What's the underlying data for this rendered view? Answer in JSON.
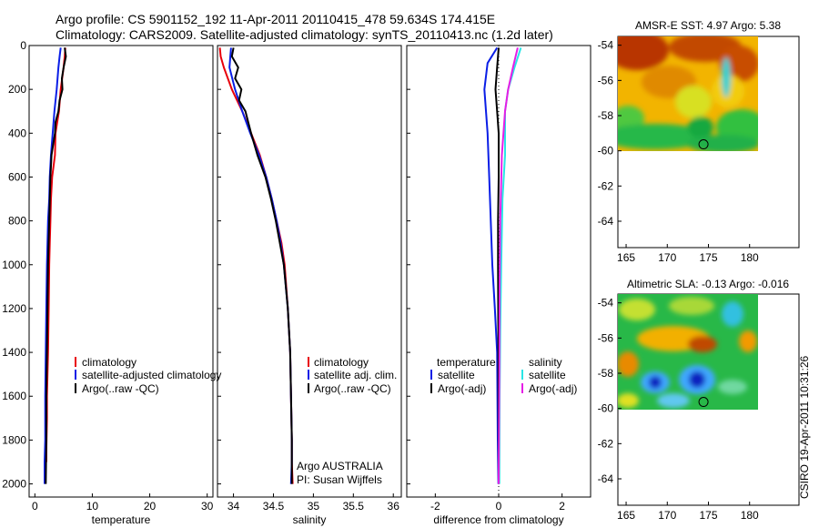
{
  "header": {
    "line1": "Argo profile: CS 5901152_192 11-Apr-2011 20110415_478 59.634S 174.415E",
    "line2": "Climatology: CARS2009. Satellite-adjusted climatology: synTS_20110413.nc (1.2d later)"
  },
  "credit": "CSIRO 19-Apr-2011 10:31:26",
  "colors": {
    "red": "#e8000b",
    "blue": "#0a1ee6",
    "black": "#000000",
    "cyan": "#29e6e6",
    "magenta": "#e61ee6"
  },
  "chart_data": [
    {
      "type": "line",
      "name": "temperature-profile",
      "xlabel": "temperature",
      "xlim": [
        -1,
        31
      ],
      "xticks": [
        "0",
        "10",
        "20",
        "30"
      ],
      "xtick_values": [
        0,
        10,
        20,
        30
      ],
      "ylim": [
        2060,
        0
      ],
      "yticks": [
        "0",
        "200",
        "400",
        "600",
        "800",
        "1000",
        "1200",
        "1400",
        "1600",
        "1800",
        "2000"
      ],
      "ytick_values": [
        0,
        200,
        400,
        600,
        800,
        1000,
        1200,
        1400,
        1600,
        1800,
        2000
      ],
      "series": [
        {
          "name": "climatology",
          "color": "red",
          "x": [
            5.3,
            5.2,
            5.0,
            4.5,
            4.2,
            3.6,
            3.5,
            3.0,
            2.8,
            2.7,
            2.6,
            2.5,
            2.4,
            2.3,
            2.2,
            2.1,
            2.1,
            2.0,
            2.0
          ],
          "y": [
            10,
            50,
            100,
            200,
            300,
            400,
            500,
            600,
            700,
            800,
            900,
            1000,
            1200,
            1400,
            1500,
            1600,
            1700,
            1850,
            1900
          ]
        },
        {
          "name": "satellite-adjusted climatology",
          "color": "blue",
          "x": [
            4.5,
            4.3,
            4.1,
            3.8,
            3.4,
            3.1,
            2.8,
            2.6,
            2.5,
            2.3,
            2.2,
            2.1,
            2.0,
            1.9,
            1.8,
            1.8,
            1.7,
            1.7
          ],
          "y": [
            10,
            50,
            100,
            200,
            300,
            400,
            500,
            600,
            700,
            800,
            900,
            1000,
            1200,
            1400,
            1600,
            1800,
            1900,
            2000
          ]
        },
        {
          "name": "Argo(..raw -QC)",
          "color": "black",
          "x": [
            5.2,
            5.4,
            5.0,
            4.7,
            4.8,
            4.3,
            4.1,
            3.6,
            3.5,
            3.2,
            2.9,
            2.7,
            2.5,
            2.3,
            2.2,
            2.1,
            2.0,
            2.0,
            1.9
          ],
          "y": [
            10,
            50,
            100,
            150,
            200,
            250,
            300,
            350,
            400,
            450,
            500,
            600,
            800,
            1000,
            1200,
            1400,
            1600,
            1800,
            2000
          ]
        }
      ],
      "legend": [
        "climatology",
        "satellite-adjusted climatology",
        "Argo(..raw -QC)"
      ]
    },
    {
      "type": "line",
      "name": "salinity-profile",
      "xlabel": "salinity",
      "xlim": [
        33.8,
        36.1
      ],
      "xticks": [
        "34",
        "34.5",
        "35",
        "35.5",
        "36"
      ],
      "xtick_values": [
        34,
        34.5,
        35,
        35.5,
        36
      ],
      "ylim": [
        2060,
        0
      ],
      "series": [
        {
          "name": "climatology",
          "color": "red",
          "x": [
            33.83,
            33.84,
            33.88,
            33.98,
            34.11,
            34.22,
            34.33,
            34.41,
            34.48,
            34.54,
            34.6,
            34.64,
            34.68,
            34.71,
            34.72,
            34.73,
            34.73,
            34.74
          ],
          "y": [
            10,
            50,
            100,
            200,
            300,
            400,
            500,
            600,
            700,
            800,
            900,
            1000,
            1200,
            1400,
            1600,
            1800,
            1900,
            2000
          ]
        },
        {
          "name": "satellite adj. clim.",
          "color": "blue",
          "x": [
            33.97,
            33.96,
            33.95,
            34.02,
            34.11,
            34.21,
            34.32,
            34.41,
            34.48,
            34.54,
            34.59,
            34.63,
            34.68,
            34.71,
            34.72,
            34.73,
            34.73,
            34.72
          ],
          "y": [
            10,
            50,
            100,
            200,
            300,
            400,
            500,
            600,
            700,
            800,
            900,
            1000,
            1200,
            1400,
            1600,
            1800,
            1900,
            2000
          ]
        },
        {
          "name": "Argo(..raw -QC)",
          "color": "black",
          "x": [
            34.0,
            33.98,
            34.06,
            34.02,
            34.1,
            34.07,
            34.15,
            34.22,
            34.3,
            34.4,
            34.47,
            34.53,
            34.58,
            34.63,
            34.68,
            34.71,
            34.72,
            34.73,
            34.73
          ],
          "y": [
            10,
            50,
            100,
            150,
            200,
            250,
            300,
            400,
            500,
            600,
            700,
            800,
            900,
            1000,
            1200,
            1400,
            1600,
            1800,
            2000
          ]
        }
      ],
      "legend": [
        "climatology",
        "satellite adj. clim.",
        "Argo(..raw -QC)"
      ],
      "annotation": [
        "Argo AUSTRALIA",
        "PI: Susan Wijffels"
      ]
    },
    {
      "type": "line",
      "name": "difference-profile",
      "xlabel": "difference from climatology",
      "xlim": [
        -2.9,
        2.9
      ],
      "xticks": [
        "-2",
        "0",
        "2"
      ],
      "xtick_values": [
        -2,
        0,
        2
      ],
      "ylim": [
        2060,
        0
      ],
      "series": [
        {
          "name": "temperature satellite",
          "color": "blue",
          "x": [
            -0.05,
            -0.35,
            -0.45,
            -0.35,
            -0.3,
            -0.25,
            -0.2,
            -0.12,
            -0.05,
            -0.03,
            -0.01
          ],
          "y": [
            10,
            80,
            200,
            400,
            600,
            800,
            1000,
            1200,
            1400,
            1800,
            2000
          ]
        },
        {
          "name": "temperature Argo(-adj)",
          "color": "black",
          "x": [
            0.0,
            -0.05,
            -0.1,
            -0.05,
            0.0,
            0.0,
            -0.02,
            -0.02,
            -0.01,
            0.0
          ],
          "y": [
            10,
            100,
            200,
            300,
            400,
            600,
            800,
            1000,
            1400,
            2000
          ]
        },
        {
          "name": "salinity satellite",
          "color": "cyan",
          "x": [
            0.7,
            0.5,
            0.3,
            0.2,
            0.2,
            0.12,
            0.08,
            0.05,
            0.03,
            0.02
          ],
          "y": [
            10,
            100,
            200,
            300,
            500,
            700,
            1000,
            1300,
            1600,
            2000
          ]
        },
        {
          "name": "salinity Argo(-adj)",
          "color": "magenta",
          "x": [
            0.6,
            0.45,
            0.3,
            0.2,
            0.1,
            0.05,
            0.03,
            0.02,
            0.0
          ],
          "y": [
            10,
            100,
            200,
            300,
            500,
            800,
            1100,
            1500,
            2000
          ]
        }
      ],
      "legend": {
        "temperature_title": "temperature",
        "salinity_title": "salinity",
        "temperature_items": [
          "satellite",
          "Argo(-adj)"
        ],
        "salinity_items": [
          "satellite",
          "Argo(-adj)"
        ]
      }
    },
    {
      "type": "heatmap",
      "name": "amsr-e-sst-map",
      "title": "AMSR-E SST: 4.97 Argo: 5.38",
      "xlim": [
        164,
        186
      ],
      "ylim": [
        -65.5,
        -53.5
      ],
      "xticks": [
        "165",
        "170",
        "175",
        "180"
      ],
      "xtick_values": [
        165,
        170,
        175,
        180
      ],
      "yticks": [
        "-54",
        "-56",
        "-58",
        "-60",
        "-62",
        "-64"
      ],
      "ytick_values": [
        -54,
        -56,
        -58,
        -60,
        -62,
        -64
      ],
      "data_extent": {
        "lon": [
          164.0,
          180.0
        ],
        "lat": [
          -53.7,
          -60.2
        ]
      },
      "marker": {
        "lon": 174.4,
        "lat": -59.63
      }
    },
    {
      "type": "heatmap",
      "name": "altimetric-sla-map",
      "title": "Altimetric SLA: -0.13 Argo: -0.016",
      "xlim": [
        164,
        186
      ],
      "ylim": [
        -65.5,
        -53.5
      ],
      "xticks": [
        "165",
        "170",
        "175",
        "180"
      ],
      "xtick_values": [
        165,
        170,
        175,
        180
      ],
      "yticks": [
        "-54",
        "-56",
        "-58",
        "-60",
        "-62",
        "-64"
      ],
      "ytick_values": [
        -54,
        -56,
        -58,
        -60,
        -62,
        -64
      ],
      "data_extent": {
        "lon": [
          164.0,
          180.0
        ],
        "lat": [
          -53.7,
          -60.2
        ]
      },
      "marker": {
        "lon": 174.4,
        "lat": -59.63
      }
    }
  ]
}
